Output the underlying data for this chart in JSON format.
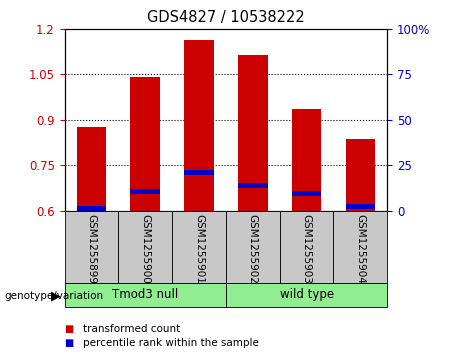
{
  "title": "GDS4827 / 10538222",
  "samples": [
    "GSM1255899",
    "GSM1255900",
    "GSM1255901",
    "GSM1255902",
    "GSM1255903",
    "GSM1255904"
  ],
  "red_values": [
    0.875,
    1.04,
    1.165,
    1.115,
    0.935,
    0.835
  ],
  "blue_values": [
    0.608,
    0.662,
    0.727,
    0.683,
    0.655,
    0.612
  ],
  "ylim": [
    0.6,
    1.2
  ],
  "yticks_left": [
    0.6,
    0.75,
    0.9,
    1.05,
    1.2
  ],
  "yticks_right": [
    0,
    25,
    50,
    75,
    100
  ],
  "yticklabels_right": [
    "0",
    "25",
    "50",
    "75",
    "100%"
  ],
  "groups": [
    {
      "label": "Tmod3 null",
      "start": 0,
      "end": 3,
      "color": "#90EE90"
    },
    {
      "label": "wild type",
      "start": 3,
      "end": 6,
      "color": "#90EE90"
    }
  ],
  "bar_width": 0.55,
  "bar_color": "#CC0000",
  "blue_color": "#0000CC",
  "bg_color": "#C8C8C8",
  "plot_bg": "#FFFFFF",
  "left_tick_color": "#CC0000",
  "right_tick_color": "#0000CC",
  "legend_items": [
    {
      "label": "transformed count",
      "color": "#CC0000"
    },
    {
      "label": "percentile rank within the sample",
      "color": "#0000CC"
    }
  ]
}
